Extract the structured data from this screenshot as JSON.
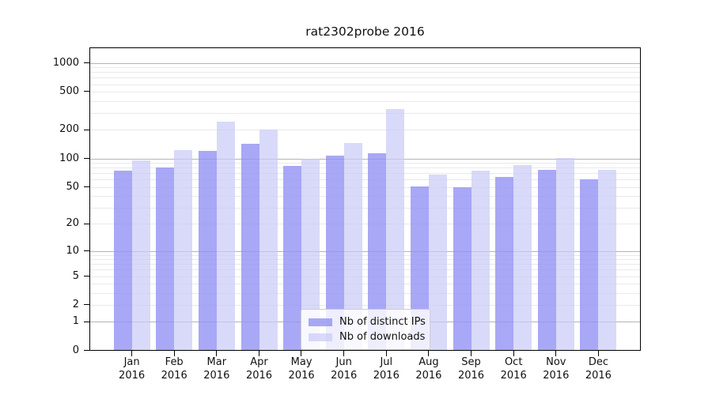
{
  "chart_data": {
    "type": "bar",
    "title": "rat2302probe 2016",
    "x_months": [
      "Jan",
      "Feb",
      "Mar",
      "Apr",
      "May",
      "Jun",
      "Jul",
      "Aug",
      "Sep",
      "Oct",
      "Nov",
      "Dec"
    ],
    "x_year": "2016",
    "series": [
      {
        "name": "Nb of distinct IPs",
        "color": "rgba(146,146,244,0.8)",
        "values": [
          74,
          80,
          120,
          142,
          83,
          108,
          114,
          51,
          50,
          64,
          76,
          60
        ]
      },
      {
        "name": "Nb of downloads",
        "color": "rgba(201,201,247,0.7)",
        "values": [
          95,
          122,
          243,
          200,
          99,
          145,
          330,
          68,
          74,
          85,
          101,
          76
        ]
      }
    ],
    "yscale": "log1p",
    "y_ticks": [
      1000,
      500,
      200,
      100,
      50,
      20,
      10,
      5,
      2,
      1,
      0
    ],
    "y_top_value": 1450,
    "grid": true,
    "legend_position": "lower center"
  },
  "colors": {
    "background": "#ffffff",
    "bar_ips": "rgba(146,146,244,0.8)",
    "bar_downloads": "rgba(201,201,247,0.7)",
    "grid_major": "#b4b4b4",
    "grid_minor": "#e9e9e9",
    "spine": "#000000",
    "text": "#111111",
    "legend_border": "#cccccc",
    "legend_bg": "rgba(255,255,255,0.8)"
  }
}
